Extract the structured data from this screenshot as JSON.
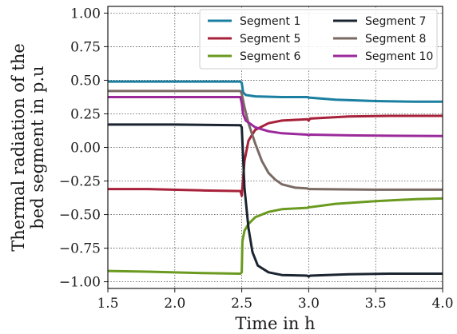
{
  "chart_data": {
    "type": "line",
    "xlabel": "Time in h",
    "ylabel_lines": [
      "Thermal radiation of the",
      "bed segment in p.u"
    ],
    "xlim": [
      1.5,
      4.0
    ],
    "ylim": [
      -1.05,
      1.05
    ],
    "x_ticks": [
      1.5,
      2.0,
      2.5,
      3.0,
      3.5,
      4.0
    ],
    "x_tick_labels": [
      "1.5",
      "2.0",
      "2.5",
      "3.0",
      "3.5",
      "4.0"
    ],
    "y_ticks": [
      1.0,
      0.75,
      0.5,
      0.25,
      0.0,
      -0.25,
      -0.5,
      -0.75,
      -1.0
    ],
    "y_tick_labels": [
      "1.00",
      "0.75",
      "0.50",
      "0.25",
      "0.00",
      "−0.25",
      "−0.50",
      "−0.75",
      "−1.00"
    ],
    "grid": true,
    "legend_position": "top-right",
    "legend_columns": 2,
    "series": [
      {
        "name": "Segment 1",
        "color": "#1a7fa0",
        "points": [
          [
            1.5,
            0.49
          ],
          [
            2.0,
            0.49
          ],
          [
            2.49,
            0.49
          ],
          [
            2.5,
            0.48
          ],
          [
            2.51,
            0.41
          ],
          [
            2.53,
            0.39
          ],
          [
            2.6,
            0.38
          ],
          [
            2.8,
            0.375
          ],
          [
            2.99,
            0.375
          ],
          [
            3.0,
            0.37
          ],
          [
            3.01,
            0.37
          ],
          [
            3.2,
            0.355
          ],
          [
            3.5,
            0.345
          ],
          [
            3.8,
            0.34
          ],
          [
            4.0,
            0.34
          ]
        ]
      },
      {
        "name": "Segment 5",
        "color": "#a8213a",
        "points": [
          [
            1.5,
            -0.31
          ],
          [
            1.8,
            -0.31
          ],
          [
            2.2,
            -0.32
          ],
          [
            2.49,
            -0.325
          ],
          [
            2.5,
            -0.36
          ],
          [
            2.505,
            -0.3
          ],
          [
            2.52,
            -0.1
          ],
          [
            2.55,
            0.05
          ],
          [
            2.6,
            0.13
          ],
          [
            2.7,
            0.18
          ],
          [
            2.8,
            0.2
          ],
          [
            2.99,
            0.21
          ],
          [
            3.0,
            0.2
          ],
          [
            3.01,
            0.215
          ],
          [
            3.3,
            0.23
          ],
          [
            3.6,
            0.235
          ],
          [
            4.0,
            0.235
          ]
        ]
      },
      {
        "name": "Segment 6",
        "color": "#6a9a1f",
        "points": [
          [
            1.5,
            -0.92
          ],
          [
            1.8,
            -0.925
          ],
          [
            2.2,
            -0.935
          ],
          [
            2.49,
            -0.94
          ],
          [
            2.5,
            -0.93
          ],
          [
            2.505,
            -0.7
          ],
          [
            2.52,
            -0.62
          ],
          [
            2.55,
            -0.57
          ],
          [
            2.6,
            -0.52
          ],
          [
            2.7,
            -0.48
          ],
          [
            2.8,
            -0.46
          ],
          [
            2.99,
            -0.45
          ],
          [
            3.0,
            -0.445
          ],
          [
            3.01,
            -0.445
          ],
          [
            3.2,
            -0.42
          ],
          [
            3.5,
            -0.4
          ],
          [
            3.8,
            -0.385
          ],
          [
            4.0,
            -0.38
          ]
        ]
      },
      {
        "name": "Segment 7",
        "color": "#1b2430",
        "points": [
          [
            1.5,
            0.17
          ],
          [
            2.0,
            0.17
          ],
          [
            2.49,
            0.165
          ],
          [
            2.5,
            0.15
          ],
          [
            2.52,
            -0.3
          ],
          [
            2.55,
            -0.6
          ],
          [
            2.58,
            -0.78
          ],
          [
            2.62,
            -0.88
          ],
          [
            2.7,
            -0.93
          ],
          [
            2.8,
            -0.95
          ],
          [
            2.99,
            -0.955
          ],
          [
            3.0,
            -0.962
          ],
          [
            3.01,
            -0.955
          ],
          [
            3.3,
            -0.945
          ],
          [
            3.6,
            -0.94
          ],
          [
            4.0,
            -0.94
          ]
        ]
      },
      {
        "name": "Segment 8",
        "color": "#7a6a64",
        "points": [
          [
            1.5,
            0.42
          ],
          [
            2.0,
            0.42
          ],
          [
            2.49,
            0.42
          ],
          [
            2.5,
            0.4
          ],
          [
            2.52,
            0.3
          ],
          [
            2.55,
            0.18
          ],
          [
            2.6,
            0.03
          ],
          [
            2.65,
            -0.1
          ],
          [
            2.7,
            -0.19
          ],
          [
            2.75,
            -0.24
          ],
          [
            2.8,
            -0.275
          ],
          [
            2.9,
            -0.3
          ],
          [
            2.99,
            -0.305
          ],
          [
            3.0,
            -0.31
          ],
          [
            3.01,
            -0.31
          ],
          [
            3.5,
            -0.315
          ],
          [
            4.0,
            -0.315
          ]
        ]
      },
      {
        "name": "Segment 10",
        "color": "#9a2a9a",
        "points": [
          [
            1.5,
            0.375
          ],
          [
            2.0,
            0.375
          ],
          [
            2.49,
            0.375
          ],
          [
            2.5,
            0.33
          ],
          [
            2.51,
            0.25
          ],
          [
            2.53,
            0.2
          ],
          [
            2.6,
            0.15
          ],
          [
            2.7,
            0.12
          ],
          [
            2.8,
            0.105
          ],
          [
            2.99,
            0.095
          ],
          [
            3.0,
            0.09
          ],
          [
            3.01,
            0.095
          ],
          [
            3.3,
            0.09
          ],
          [
            3.6,
            0.087
          ],
          [
            4.0,
            0.085
          ]
        ]
      }
    ]
  }
}
